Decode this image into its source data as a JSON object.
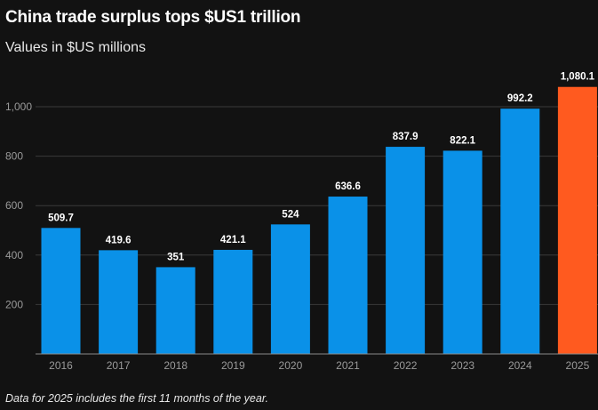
{
  "chart_data": {
    "type": "bar",
    "title": "China trade surplus tops $US1 trillion",
    "subtitle": "Values in $US millions",
    "footnote": "Data for 2025 includes the first 11 months of the year.",
    "xlabel": "",
    "ylabel": "",
    "ylim": [
      0,
      1100
    ],
    "yticks": [
      200,
      400,
      600,
      800,
      1000
    ],
    "ytick_labels": [
      "200",
      "400",
      "600",
      "800",
      "1,000"
    ],
    "grid": true,
    "categories": [
      "2016",
      "2017",
      "2018",
      "2019",
      "2020",
      "2021",
      "2022",
      "2023",
      "2024",
      "2025"
    ],
    "values": [
      509.7,
      419.6,
      351,
      421.1,
      524,
      636.6,
      837.9,
      822.1,
      992.2,
      1080.1
    ],
    "value_labels": [
      "509.7",
      "419.6",
      "351",
      "421.1",
      "524",
      "636.6",
      "837.9",
      "822.1",
      "992.2",
      "1,080.1"
    ],
    "bar_colors": [
      "#0a91e8",
      "#0a91e8",
      "#0a91e8",
      "#0a91e8",
      "#0a91e8",
      "#0a91e8",
      "#0a91e8",
      "#0a91e8",
      "#0a91e8",
      "#ff5a1f"
    ]
  },
  "colors": {
    "background": "#121212",
    "gridline": "#3a3a3a",
    "axis": "#8a8a8a"
  }
}
